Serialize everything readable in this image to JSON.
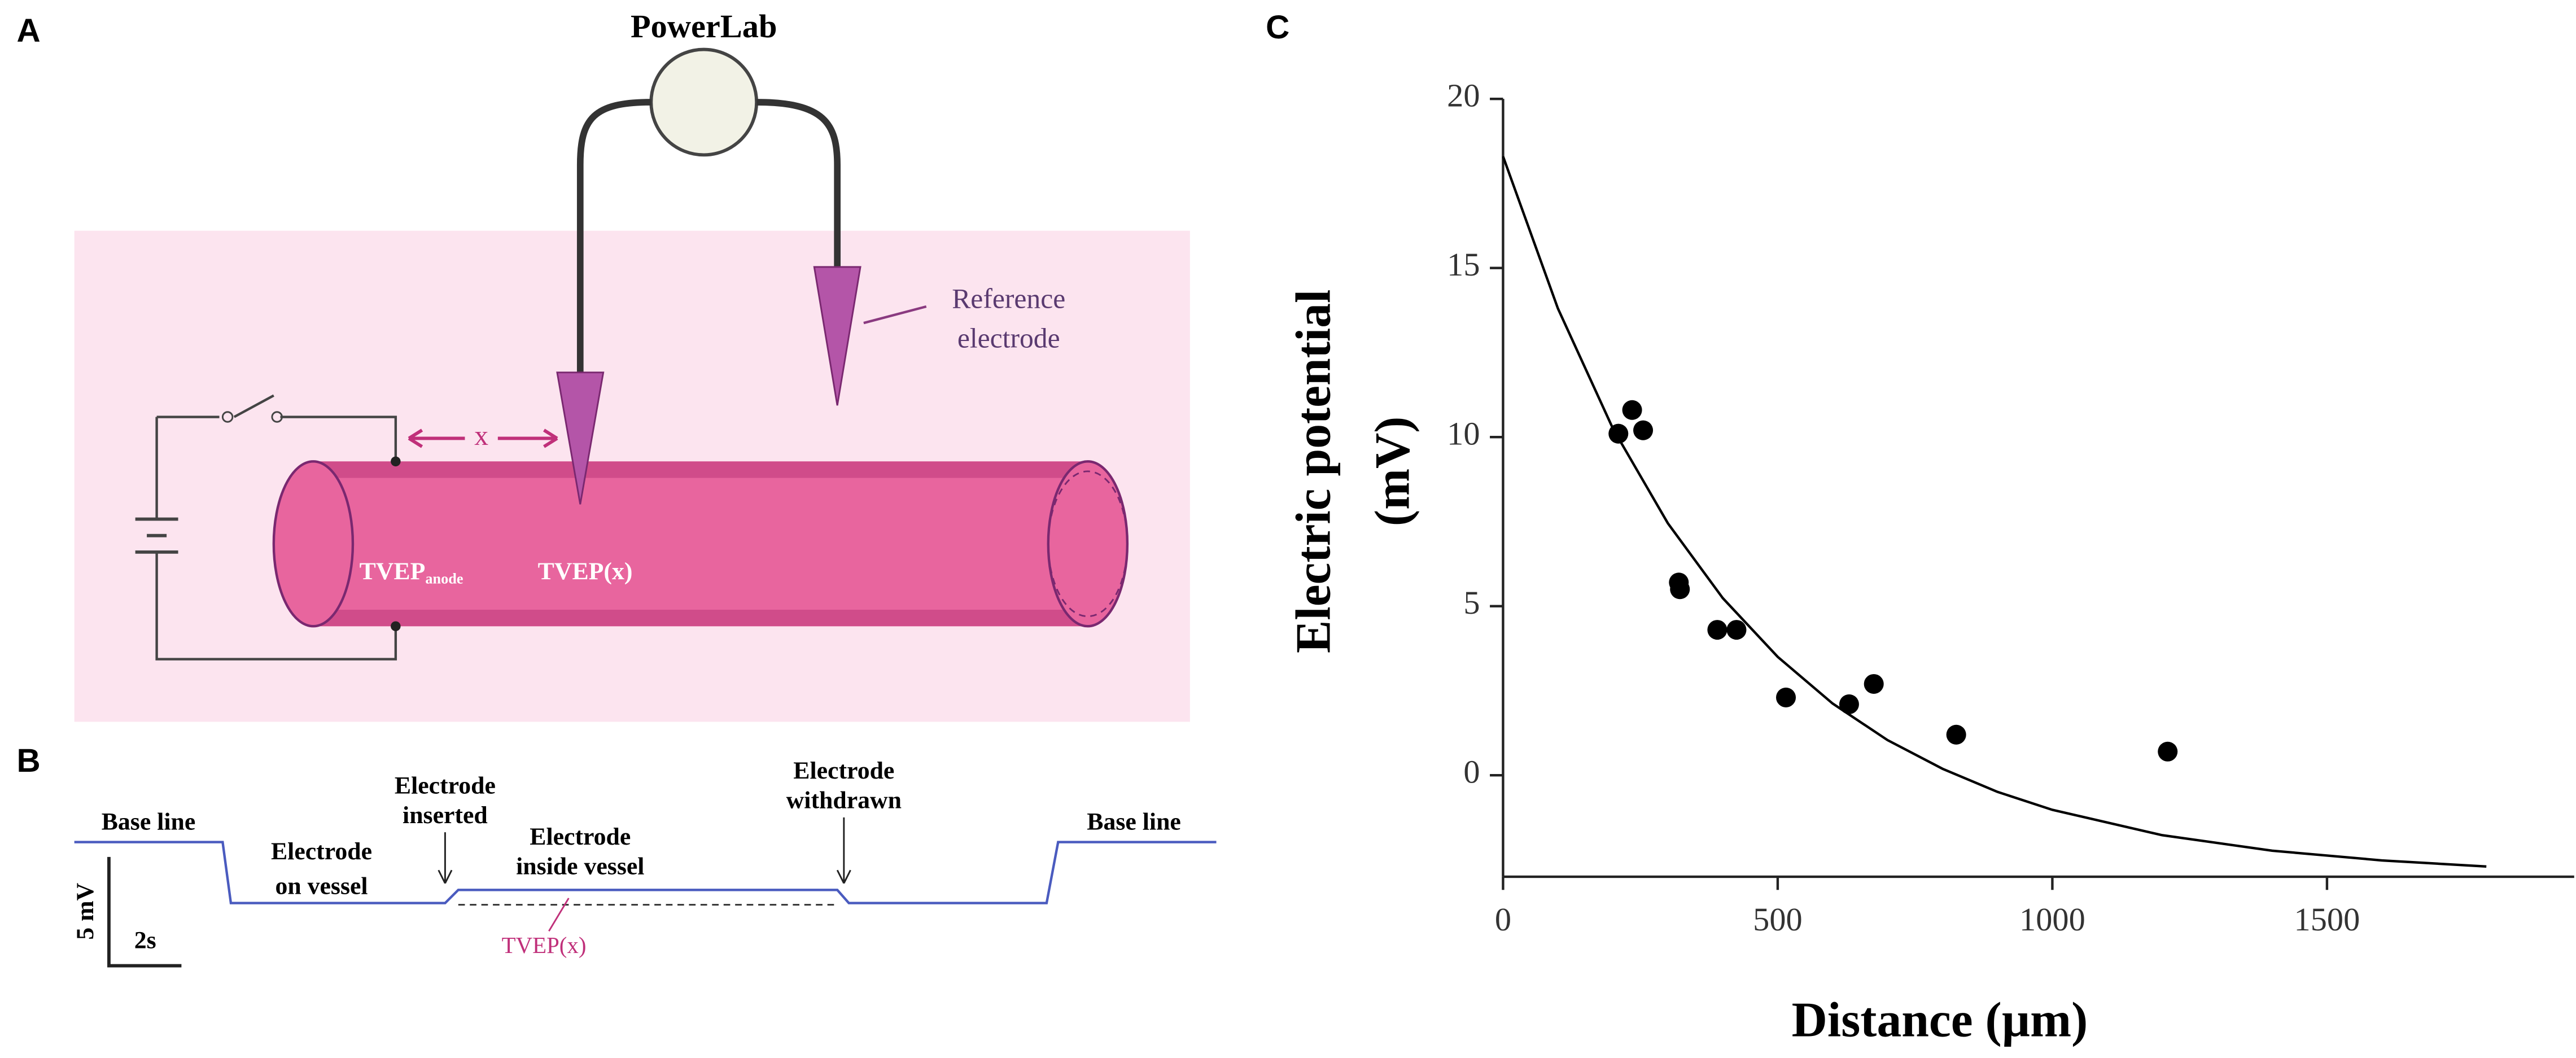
{
  "panel_labels": [
    "A",
    "B",
    "C"
  ],
  "diagram_a": {
    "device": "PowerLab",
    "reference": [
      "Reference",
      "electrode"
    ],
    "distance": "x",
    "tvep_anode": "TVEP",
    "tvep_anode_sub": "anode",
    "tvep_x": "TVEP(x)"
  },
  "diagram_b": {
    "base_line_left": "Base line",
    "on_vessel": [
      "Electrode",
      "on vessel"
    ],
    "inserted": [
      "Electrode",
      "inserted"
    ],
    "inside": [
      "Electrode",
      "inside vessel"
    ],
    "withdrawn": [
      "Electrode",
      "withdrawn"
    ],
    "base_line_right": "Base line",
    "scale_v": "5 mV",
    "scale_t": "2s",
    "tvep_x": "TVEP(x)"
  },
  "chart_data": {
    "type": "scatter",
    "xlabel": "Distance (µm)",
    "ylabel": [
      "Electric potential",
      "(mV)"
    ],
    "points": {
      "color": "#000000",
      "x": [
        210,
        235,
        255,
        320,
        322,
        390,
        425,
        515,
        630,
        675,
        825,
        1210
      ],
      "values": [
        10.1,
        10.8,
        10.2,
        5.7,
        5.5,
        4.3,
        4.3,
        2.3,
        2.1,
        2.7,
        1.2,
        0.7
      ]
    },
    "fit": {
      "color": "#000000",
      "x": [
        0,
        100,
        200,
        300,
        400,
        500,
        600,
        700,
        800,
        900,
        1000,
        1200,
        1400,
        1600,
        1790
      ],
      "values": [
        18.3,
        13.8,
        10.25,
        7.45,
        5.24,
        3.5,
        2.12,
        1.04,
        0.19,
        -0.49,
        -1.02,
        -1.77,
        -2.23,
        -2.52,
        -2.7
      ]
    },
    "xlim": [
      0,
      1950
    ],
    "ylim": [
      -3,
      20
    ],
    "xticks": [
      0,
      500,
      1000,
      1500
    ],
    "yticks": [
      0,
      5,
      10,
      15,
      20
    ]
  }
}
